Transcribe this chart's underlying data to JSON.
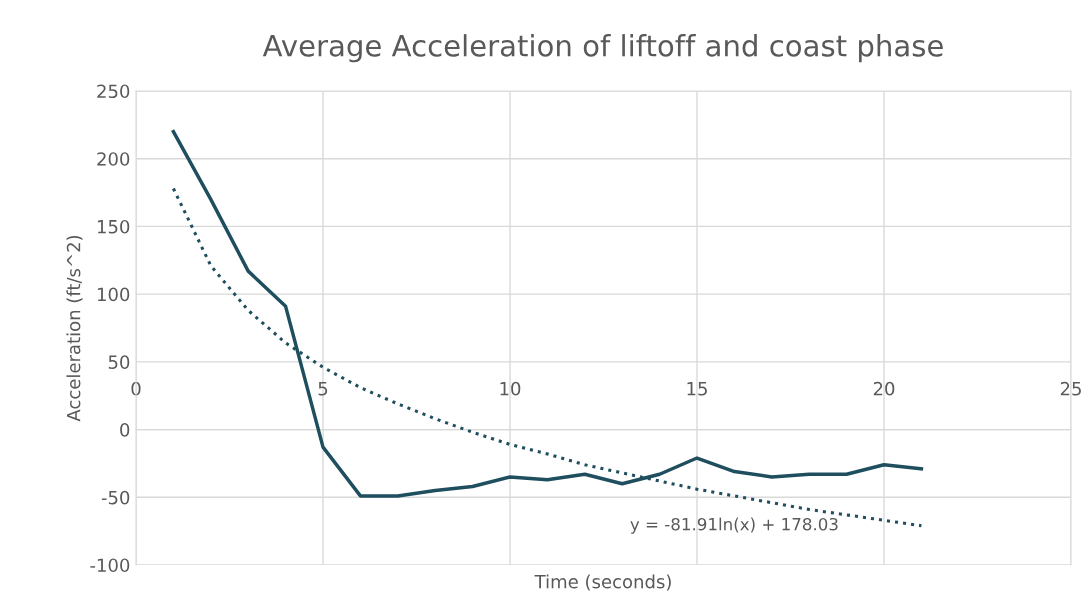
{
  "chart_data": {
    "type": "line",
    "title": "Average Acceleration of liftoff and coast phase",
    "xlabel": "Time (seconds)",
    "ylabel": "Acceleration (ft/s^2)",
    "x": [
      1,
      2,
      3,
      4,
      5,
      6,
      7,
      8,
      9,
      10,
      11,
      12,
      13,
      14,
      15,
      16,
      17,
      18,
      19,
      20,
      21
    ],
    "series": [
      {
        "color": "#1f4e5f",
        "values": [
          220,
          170,
          117,
          91,
          -13,
          -49,
          -49,
          -45,
          -42,
          -35,
          -37,
          -33,
          -40,
          -33,
          -21,
          -31,
          -35,
          -33,
          -33,
          -26,
          -29
        ],
        "line_style": "solid"
      },
      {
        "color": "#1f4e5f",
        "type": "line",
        "line_style": "dotted",
        "x": [
          1,
          2,
          3,
          4,
          5,
          6,
          7,
          8,
          9,
          10,
          11,
          12,
          13,
          14,
          15,
          16,
          17,
          18,
          19,
          20,
          21
        ],
        "values": [
          178,
          121,
          88,
          64,
          46,
          31,
          19,
          8,
          -2,
          -11,
          -18,
          -26,
          -32,
          -38,
          -44,
          -49,
          -54,
          -59,
          -63,
          -67,
          -71
        ]
      }
    ],
    "annotations": [
      "y = -81.91ln(x) + 178.03"
    ],
    "xlim": [
      0,
      25
    ],
    "xticks": [
      0,
      5,
      10,
      15,
      20,
      25
    ],
    "ylim": [
      -100,
      250
    ],
    "yticks": [
      -100,
      -50,
      0,
      50,
      100,
      150,
      200,
      250
    ],
    "grid": true,
    "legend": false,
    "marker": "none"
  }
}
